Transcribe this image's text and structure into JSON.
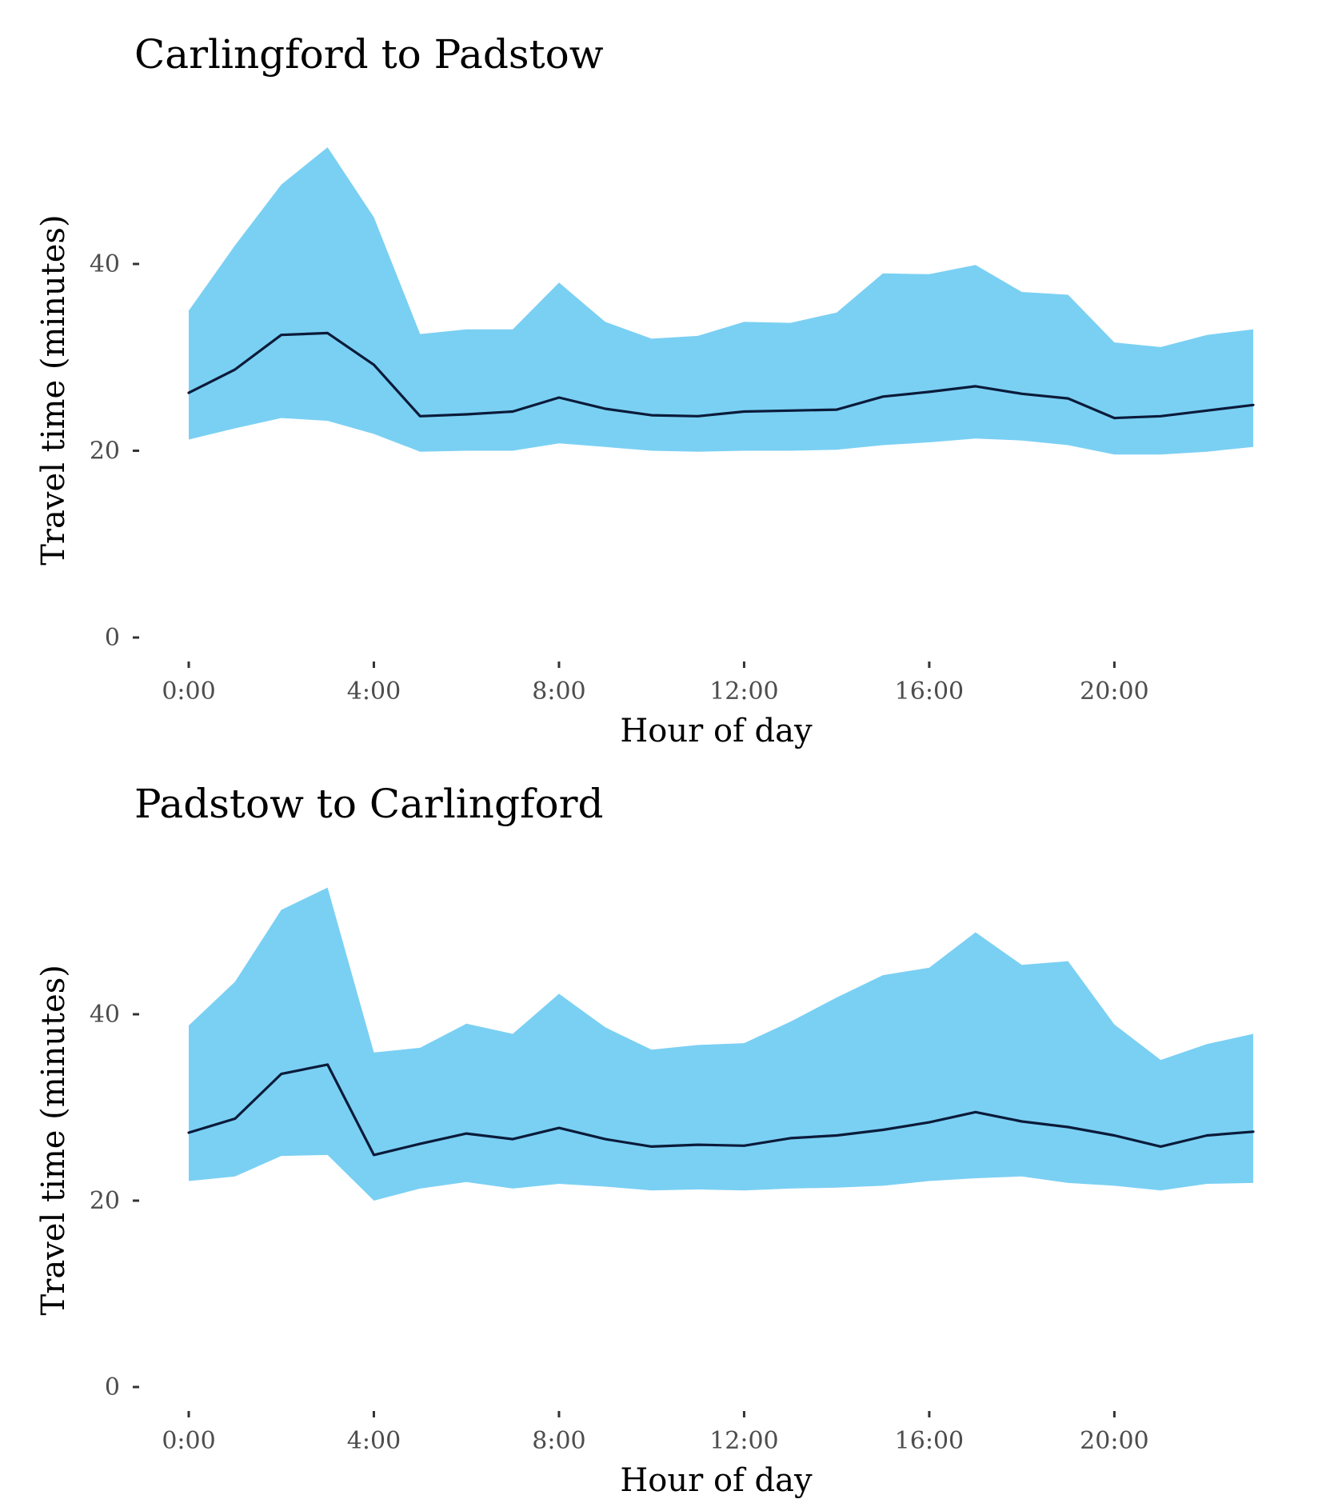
{
  "colors": {
    "band": "#7ad0f3",
    "line": "#0b1b3a",
    "tick_text": "#4d4d4d",
    "title_text": "#000000"
  },
  "chart_data": [
    {
      "type": "area",
      "title": "Carlingford to Padstow",
      "xlabel": "Hour of day",
      "ylabel": "Travel time (minutes)",
      "x": [
        0,
        1,
        2,
        3,
        4,
        5,
        6,
        7,
        8,
        9,
        10,
        11,
        12,
        13,
        14,
        15,
        16,
        17,
        18,
        19,
        20,
        21,
        22,
        23
      ],
      "xlim": [
        0,
        23
      ],
      "ylim": [
        0,
        53
      ],
      "x_ticks": [
        0,
        4,
        8,
        12,
        16,
        20
      ],
      "x_tick_labels": [
        "0:00",
        "4:00",
        "8:00",
        "12:00",
        "16:00",
        "20:00"
      ],
      "y_ticks": [
        0,
        20,
        40
      ],
      "y_tick_labels": [
        "0",
        "20",
        "40"
      ],
      "grid": false,
      "series": [
        {
          "role": "upper",
          "values": [
            35.0,
            42.0,
            48.5,
            52.5,
            45.0,
            32.5,
            33.0,
            33.0,
            38.0,
            33.8,
            32.0,
            32.3,
            33.8,
            33.7,
            34.8,
            39.0,
            38.9,
            39.9,
            37.0,
            36.7,
            31.6,
            31.1,
            32.4,
            33.0
          ]
        },
        {
          "role": "median",
          "values": [
            26.2,
            28.7,
            32.4,
            32.6,
            29.2,
            23.7,
            23.9,
            24.2,
            25.7,
            24.5,
            23.8,
            23.7,
            24.2,
            24.3,
            24.4,
            25.8,
            26.3,
            26.9,
            26.1,
            25.6,
            23.5,
            23.7,
            24.3,
            24.9
          ]
        },
        {
          "role": "lower",
          "values": [
            21.2,
            22.4,
            23.5,
            23.2,
            21.8,
            19.9,
            20.0,
            20.0,
            20.8,
            20.4,
            20.0,
            19.9,
            20.0,
            20.0,
            20.1,
            20.6,
            20.9,
            21.3,
            21.1,
            20.6,
            19.6,
            19.6,
            19.9,
            20.4
          ]
        }
      ]
    },
    {
      "type": "area",
      "title": "Padstow to Carlingford",
      "xlabel": "Hour of day",
      "ylabel": "Travel time (minutes)",
      "x": [
        0,
        1,
        2,
        3,
        4,
        5,
        6,
        7,
        8,
        9,
        10,
        11,
        12,
        13,
        14,
        15,
        16,
        17,
        18,
        19,
        20,
        21,
        22,
        23
      ],
      "xlim": [
        0,
        23
      ],
      "ylim": [
        0,
        53
      ],
      "x_ticks": [
        0,
        4,
        8,
        12,
        16,
        20
      ],
      "x_tick_labels": [
        "0:00",
        "4:00",
        "8:00",
        "12:00",
        "16:00",
        "20:00"
      ],
      "y_ticks": [
        0,
        20,
        40
      ],
      "y_tick_labels": [
        "0",
        "20",
        "40"
      ],
      "grid": false,
      "series": [
        {
          "role": "upper",
          "values": [
            38.8,
            43.5,
            51.2,
            53.6,
            35.9,
            36.4,
            39.0,
            37.9,
            42.2,
            38.6,
            36.2,
            36.7,
            36.9,
            39.2,
            41.8,
            44.2,
            45.0,
            48.8,
            45.3,
            45.7,
            38.9,
            35.1,
            36.8,
            37.9
          ]
        },
        {
          "role": "median",
          "values": [
            27.3,
            28.8,
            33.6,
            34.6,
            24.9,
            26.1,
            27.2,
            26.6,
            27.8,
            26.6,
            25.8,
            26.0,
            25.9,
            26.7,
            27.0,
            27.6,
            28.4,
            29.5,
            28.5,
            27.9,
            27.0,
            25.8,
            27.0,
            27.4
          ]
        },
        {
          "role": "lower",
          "values": [
            22.1,
            22.6,
            24.8,
            24.9,
            20.0,
            21.3,
            22.0,
            21.3,
            21.8,
            21.5,
            21.1,
            21.2,
            21.1,
            21.3,
            21.4,
            21.6,
            22.1,
            22.4,
            22.6,
            21.9,
            21.6,
            21.1,
            21.8,
            21.9
          ]
        }
      ]
    }
  ]
}
